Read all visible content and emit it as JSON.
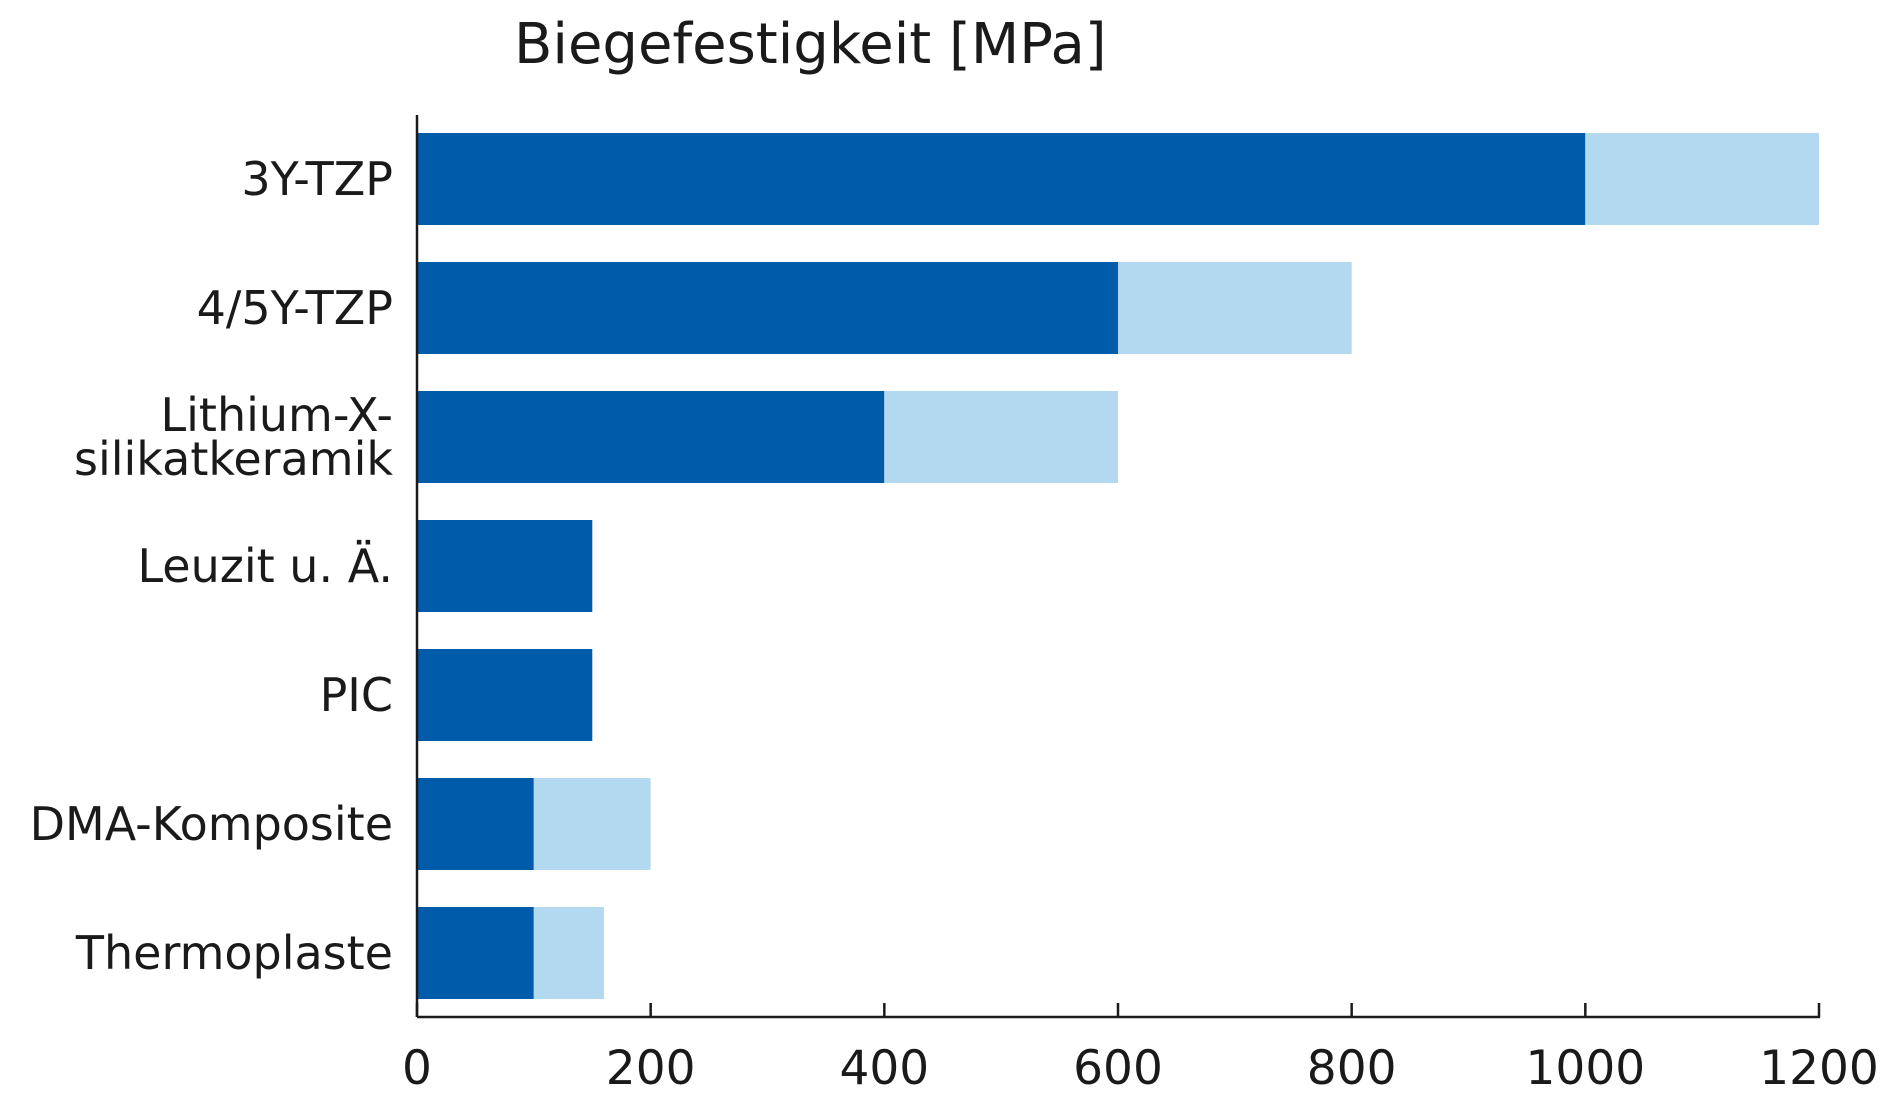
{
  "chart_data": {
    "type": "bar",
    "orientation": "horizontal",
    "stacked": true,
    "title": "Biegefestigkeit [MPa]",
    "xlabel": "",
    "ylabel": "",
    "xlim": [
      0,
      1200
    ],
    "xticks": [
      0,
      200,
      400,
      600,
      800,
      1000,
      1200
    ],
    "grid": false,
    "legend": "none",
    "categories": [
      [
        "3Y-TZP"
      ],
      [
        "4/5Y-TZP"
      ],
      [
        "Lithium-X-",
        "silikatkeramik"
      ],
      [
        "Leuzit u. Ä."
      ],
      [
        "PIC"
      ],
      [
        "DMA-Komposite"
      ],
      [
        "Thermoplaste"
      ]
    ],
    "series": [
      {
        "values": [
          1000,
          600,
          400,
          150,
          150,
          100,
          100
        ],
        "color": "#005bab"
      },
      {
        "values": [
          200,
          200,
          200,
          0,
          0,
          100,
          60
        ],
        "color": "#b3d9f1"
      }
    ],
    "ranges": [
      {
        "min": 1000,
        "max": 1200
      },
      {
        "min": 600,
        "max": 800
      },
      {
        "min": 400,
        "max": 600
      },
      {
        "min": 150,
        "max": 150
      },
      {
        "min": 150,
        "max": 150
      },
      {
        "min": 100,
        "max": 200
      },
      {
        "min": 100,
        "max": 160
      }
    ],
    "colors": {
      "dark": "#005bab",
      "light": "#b3d9f1",
      "axis": "#1a1a1a"
    }
  }
}
